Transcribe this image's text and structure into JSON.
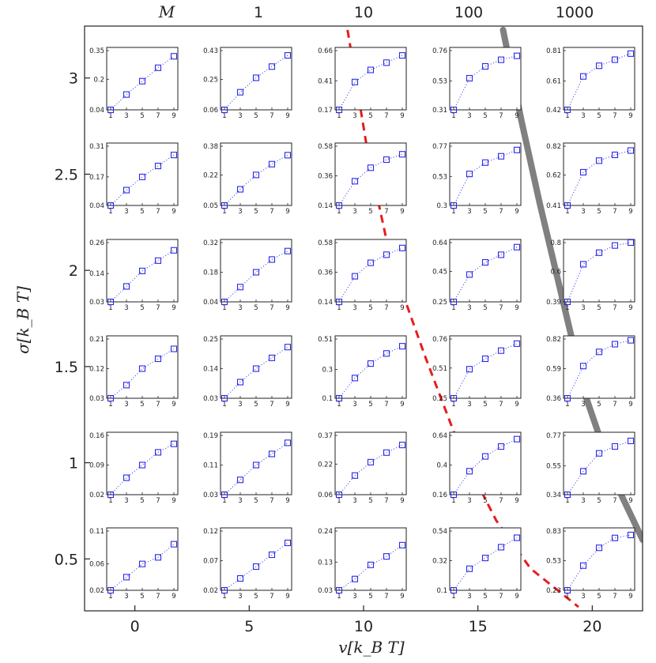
{
  "colors": {
    "series": "#2a2ae8",
    "dashed_curve": "#e81c1c",
    "gray_curve": "#808080",
    "axes": "#222222"
  },
  "labels": {
    "x_title": "v[k_B T]",
    "y_title": "σ[k_B T]",
    "top_title": "M"
  },
  "chart_data": {
    "type": "scatter",
    "x_axis": {
      "label": "v[k_B T]",
      "ticks": [
        0,
        5,
        10,
        15,
        20
      ],
      "range": [
        -2.2,
        22.2
      ]
    },
    "y_axis": {
      "label": "σ[k_B T]",
      "ticks": [
        0.5,
        1,
        1.5,
        2,
        2.5,
        3
      ],
      "range": [
        0.23,
        3.27
      ]
    },
    "top_axis": {
      "label": "M",
      "ticks": [
        "1",
        "10",
        "100",
        "1000"
      ]
    },
    "grid": false,
    "inset_x_ticks": [
      1,
      3,
      5,
      7,
      9
    ],
    "inset_x_values": [
      1,
      3,
      5,
      7,
      9
    ],
    "inset_rows": [
      {
        "sigma": 3,
        "insets": [
          {
            "v": 0,
            "yticks": [
              "0.04",
              "0.2",
              "0.35"
            ],
            "values": [
              0.04,
              0.12,
              0.19,
              0.26,
              0.32
            ]
          },
          {
            "v": 5,
            "yticks": [
              "0.06",
              "0.25",
              "0.43"
            ],
            "values": [
              0.06,
              0.17,
              0.26,
              0.33,
              0.4
            ]
          },
          {
            "v": 10,
            "yticks": [
              "0.17",
              "0.41",
              "0.66"
            ],
            "values": [
              0.17,
              0.4,
              0.5,
              0.56,
              0.62
            ]
          },
          {
            "v": 15,
            "yticks": [
              "0.31",
              "0.53",
              "0.76"
            ],
            "values": [
              0.31,
              0.55,
              0.64,
              0.69,
              0.72
            ]
          },
          {
            "v": 20,
            "yticks": [
              "0.42",
              "0.61",
              "0.81"
            ],
            "values": [
              0.42,
              0.64,
              0.71,
              0.75,
              0.79
            ]
          }
        ]
      },
      {
        "sigma": 2.5,
        "insets": [
          {
            "v": 0,
            "yticks": [
              "0.04",
              "0.17",
              "0.31"
            ],
            "values": [
              0.04,
              0.11,
              0.17,
              0.22,
              0.27
            ]
          },
          {
            "v": 5,
            "yticks": [
              "0.05",
              "0.22",
              "0.38"
            ],
            "values": [
              0.05,
              0.14,
              0.22,
              0.28,
              0.33
            ]
          },
          {
            "v": 10,
            "yticks": [
              "0.14",
              "0.36",
              "0.58"
            ],
            "values": [
              0.14,
              0.32,
              0.42,
              0.48,
              0.52
            ]
          },
          {
            "v": 15,
            "yticks": [
              "0.3",
              "0.53",
              "0.77"
            ],
            "values": [
              0.3,
              0.55,
              0.64,
              0.69,
              0.74
            ]
          },
          {
            "v": 20,
            "yticks": [
              "0.41",
              "0.62",
              "0.82"
            ],
            "values": [
              0.41,
              0.64,
              0.72,
              0.76,
              0.79
            ]
          }
        ]
      },
      {
        "sigma": 2,
        "insets": [
          {
            "v": 0,
            "yticks": [
              "0.03",
              "0.14",
              "0.26"
            ],
            "values": [
              0.03,
              0.09,
              0.15,
              0.19,
              0.23
            ]
          },
          {
            "v": 5,
            "yticks": [
              "0.04",
              "0.18",
              "0.32"
            ],
            "values": [
              0.04,
              0.11,
              0.18,
              0.24,
              0.28
            ]
          },
          {
            "v": 10,
            "yticks": [
              "0.14",
              "0.36",
              "0.58"
            ],
            "values": [
              0.14,
              0.33,
              0.43,
              0.49,
              0.54
            ]
          },
          {
            "v": 15,
            "yticks": [
              "0.25",
              "0.45",
              "0.64"
            ],
            "values": [
              0.25,
              0.43,
              0.51,
              0.56,
              0.61
            ]
          },
          {
            "v": 20,
            "yticks": [
              "0.39",
              "0.6",
              "0.8"
            ],
            "values": [
              0.39,
              0.65,
              0.73,
              0.78,
              0.8
            ]
          }
        ]
      },
      {
        "sigma": 1.5,
        "insets": [
          {
            "v": 0,
            "yticks": [
              "0.03",
              "0.12",
              "0.21"
            ],
            "values": [
              0.03,
              0.07,
              0.12,
              0.15,
              0.18
            ]
          },
          {
            "v": 5,
            "yticks": [
              "0.03",
              "0.14",
              "0.25"
            ],
            "values": [
              0.03,
              0.09,
              0.14,
              0.18,
              0.22
            ]
          },
          {
            "v": 10,
            "yticks": [
              "0.1",
              "0.3",
              "0.51"
            ],
            "values": [
              0.1,
              0.24,
              0.34,
              0.41,
              0.46
            ]
          },
          {
            "v": 15,
            "yticks": [
              "0.25",
              "0.51",
              "0.76"
            ],
            "values": [
              0.25,
              0.5,
              0.59,
              0.66,
              0.72
            ]
          },
          {
            "v": 20,
            "yticks": [
              "0.36",
              "0.59",
              "0.82"
            ],
            "values": [
              0.36,
              0.61,
              0.72,
              0.78,
              0.81
            ]
          }
        ]
      },
      {
        "sigma": 1,
        "insets": [
          {
            "v": 0,
            "yticks": [
              "0.02",
              "0.09",
              "0.16"
            ],
            "values": [
              0.02,
              0.06,
              0.09,
              0.12,
              0.14
            ]
          },
          {
            "v": 5,
            "yticks": [
              "0.03",
              "0.11",
              "0.19"
            ],
            "values": [
              0.03,
              0.07,
              0.11,
              0.14,
              0.17
            ]
          },
          {
            "v": 10,
            "yticks": [
              "0.06",
              "0.22",
              "0.37"
            ],
            "values": [
              0.06,
              0.16,
              0.23,
              0.28,
              0.32
            ]
          },
          {
            "v": 15,
            "yticks": [
              "0.16",
              "0.4",
              "0.64"
            ],
            "values": [
              0.16,
              0.35,
              0.47,
              0.55,
              0.61
            ]
          },
          {
            "v": 20,
            "yticks": [
              "0.34",
              "0.55",
              "0.77"
            ],
            "values": [
              0.34,
              0.51,
              0.64,
              0.69,
              0.73
            ]
          }
        ]
      },
      {
        "sigma": 0.5,
        "insets": [
          {
            "v": 0,
            "yticks": [
              "0.02",
              "0.06",
              "0.11"
            ],
            "values": [
              0.02,
              0.04,
              0.06,
              0.07,
              0.09
            ]
          },
          {
            "v": 5,
            "yticks": [
              "0.02",
              "0.07",
              "0.12"
            ],
            "values": [
              0.02,
              0.04,
              0.06,
              0.08,
              0.1
            ]
          },
          {
            "v": 10,
            "yticks": [
              "0.03",
              "0.13",
              "0.24"
            ],
            "values": [
              0.03,
              0.07,
              0.12,
              0.15,
              0.19
            ]
          },
          {
            "v": 15,
            "yticks": [
              "0.1",
              "0.32",
              "0.54"
            ],
            "values": [
              0.1,
              0.26,
              0.34,
              0.42,
              0.49
            ]
          },
          {
            "v": 20,
            "yticks": [
              "0.23",
              "0.53",
              "0.83"
            ],
            "values": [
              0.23,
              0.48,
              0.66,
              0.76,
              0.79
            ]
          }
        ]
      }
    ],
    "curves": [
      {
        "style": "dashed",
        "color": "#e81c1c",
        "points": [
          [
            9.3,
            3.25
          ],
          [
            10.2,
            2.6
          ],
          [
            11.2,
            2.05
          ],
          [
            12.7,
            1.55
          ],
          [
            14.3,
            1.05
          ],
          [
            15.8,
            0.7
          ],
          [
            17.3,
            0.45
          ],
          [
            19.4,
            0.25
          ]
        ]
      },
      {
        "style": "solid-thick",
        "color": "#808080",
        "points": [
          [
            16.1,
            3.25
          ],
          [
            16.9,
            2.78
          ],
          [
            17.7,
            2.35
          ],
          [
            18.6,
            1.9
          ],
          [
            19.7,
            1.35
          ],
          [
            21.0,
            0.9
          ],
          [
            22.2,
            0.6
          ]
        ]
      }
    ]
  }
}
